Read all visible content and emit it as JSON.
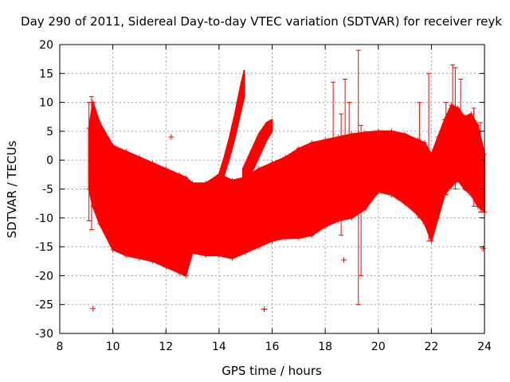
{
  "chart_data": {
    "type": "scatter",
    "title": "Day 290 of 2011, Sidereal Day-to-day VTEC variation (SDTVAR) for receiver reyk",
    "xlabel": "GPS time / hours",
    "ylabel": "SDTVAR / TECUs",
    "xlim": [
      8,
      24
    ],
    "ylim": [
      -30,
      20
    ],
    "xticks": [
      8,
      10,
      12,
      14,
      16,
      18,
      20,
      22,
      24
    ],
    "yticks": [
      -30,
      -25,
      -20,
      -15,
      -10,
      -5,
      0,
      5,
      10,
      15,
      20
    ],
    "grid": true,
    "color": "#ff0000",
    "series": [
      {
        "name": "SDTVAR",
        "description": "dense red band of error-bar points",
        "x": [
          9.1,
          9.25,
          9.5,
          10.0,
          10.5,
          11.0,
          11.5,
          12.0,
          12.5,
          12.75,
          13.0,
          13.5,
          14.0,
          14.5,
          15.0,
          15.5,
          16.0,
          16.5,
          17.0,
          17.5,
          18.0,
          18.5,
          19.0,
          19.5,
          20.0,
          20.5,
          21.0,
          21.5,
          21.75,
          22.0,
          22.25,
          22.5,
          22.75,
          23.0,
          23.25,
          23.5,
          23.75,
          24.0
        ],
        "upper": [
          5.5,
          10.0,
          6.5,
          2.5,
          1.5,
          0.5,
          -0.5,
          -1.5,
          -2.5,
          -3.0,
          -4.0,
          -4.0,
          -2.5,
          -3.5,
          -3.0,
          -1.5,
          -0.5,
          0.5,
          2.0,
          3.0,
          3.5,
          4.0,
          4.5,
          4.8,
          5.0,
          5.0,
          4.5,
          3.5,
          3.0,
          1.0,
          4.0,
          7.0,
          9.5,
          9.0,
          7.5,
          8.0,
          6.0,
          1.0
        ],
        "lower": [
          -5.0,
          -8.0,
          -11.0,
          -15.5,
          -16.5,
          -17.0,
          -17.5,
          -18.5,
          -19.5,
          -20.0,
          -16.0,
          -16.5,
          -16.5,
          -17.0,
          -16.0,
          -15.0,
          -14.0,
          -13.5,
          -13.5,
          -13.0,
          -11.5,
          -10.5,
          -10.0,
          -8.5,
          -5.5,
          -6.0,
          -7.5,
          -9.5,
          -11.0,
          -14.0,
          -10.0,
          -6.0,
          -4.5,
          -3.5,
          -5.0,
          -6.0,
          -8.0,
          -9.0
        ]
      },
      {
        "name": "rising-arc",
        "description": "narrow rising arc of points 13.8-14.95 h",
        "x": [
          13.8,
          14.0,
          14.2,
          14.4,
          14.6,
          14.8,
          14.95
        ],
        "upper": [
          -4.0,
          -2.5,
          0.5,
          4.0,
          8.0,
          12.5,
          15.5
        ],
        "lower": [
          -6.0,
          -5.0,
          -2.5,
          0.5,
          4.0,
          8.0,
          11.0
        ]
      },
      {
        "name": "second-arc",
        "description": "rising arc 14.9-16 h",
        "x": [
          14.9,
          15.2,
          15.5,
          15.8,
          16.0
        ],
        "upper": [
          -1.5,
          1.5,
          4.5,
          6.5,
          7.0
        ],
        "lower": [
          -5.0,
          -2.5,
          0.5,
          3.5,
          5.0
        ]
      }
    ],
    "outliers": [
      {
        "x": 9.25,
        "y": -25.7
      },
      {
        "x": 12.2,
        "y": 4.0
      },
      {
        "x": 15.7,
        "y": -25.8
      },
      {
        "x": 18.7,
        "y": -17.3
      },
      {
        "x": 23.95,
        "y": -15.3
      }
    ],
    "error_bars": [
      {
        "x": 9.1,
        "low": -10.5,
        "high": 10.0
      },
      {
        "x": 9.2,
        "low": -12.0,
        "high": 11.0
      },
      {
        "x": 18.3,
        "low": -5.0,
        "high": 13.5
      },
      {
        "x": 18.6,
        "low": -13.0,
        "high": 8.0
      },
      {
        "x": 18.75,
        "low": -3.0,
        "high": 14.0
      },
      {
        "x": 18.9,
        "low": -1.0,
        "high": 10.0
      },
      {
        "x": 19.25,
        "low": -25.0,
        "high": 19.0
      },
      {
        "x": 19.35,
        "low": -20.0,
        "high": 6.0
      },
      {
        "x": 21.55,
        "low": -10.0,
        "high": 10.0
      },
      {
        "x": 21.9,
        "low": -14.0,
        "high": 15.0
      },
      {
        "x": 22.55,
        "low": -6.0,
        "high": 10.0
      },
      {
        "x": 22.8,
        "low": -2.0,
        "high": 16.5
      },
      {
        "x": 22.9,
        "low": -5.0,
        "high": 16.0
      },
      {
        "x": 23.1,
        "low": -3.0,
        "high": 14.0
      },
      {
        "x": 23.6,
        "low": -8.0,
        "high": 9.0
      },
      {
        "x": 23.85,
        "low": -9.0,
        "high": 6.5
      }
    ]
  }
}
